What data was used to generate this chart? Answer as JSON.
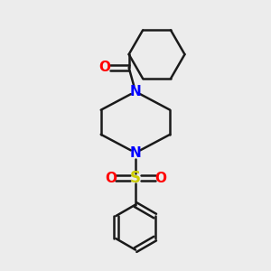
{
  "bg_color": "#ececec",
  "bond_color": "#1a1a1a",
  "N_color": "#0000ff",
  "O_color": "#ff0000",
  "S_color": "#cccc00",
  "line_width": 1.8,
  "figsize": [
    3.0,
    3.0
  ],
  "dpi": 100,
  "xlim": [
    0,
    10
  ],
  "ylim": [
    0,
    10
  ]
}
